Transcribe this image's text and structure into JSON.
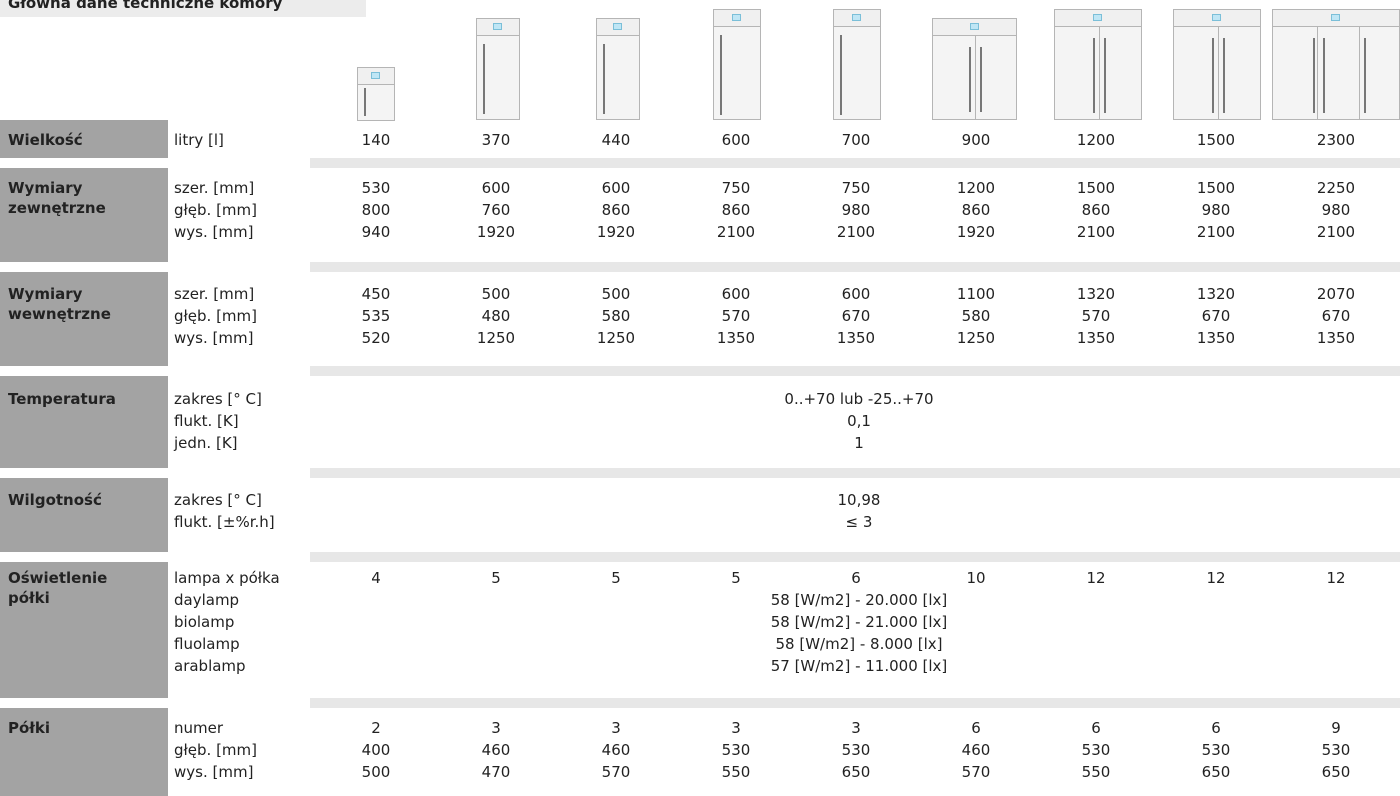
{
  "title": "Główna dane techniczne komory",
  "columns": [
    {
      "liters": "140",
      "ext": [
        "530",
        "800",
        "940"
      ],
      "int": [
        "450",
        "535",
        "520"
      ],
      "lamps": "4",
      "shelves": [
        "2",
        "400",
        "500"
      ]
    },
    {
      "liters": "370",
      "ext": [
        "600",
        "760",
        "1920"
      ],
      "int": [
        "500",
        "480",
        "1250"
      ],
      "lamps": "5",
      "shelves": [
        "3",
        "460",
        "470"
      ]
    },
    {
      "liters": "440",
      "ext": [
        "600",
        "860",
        "1920"
      ],
      "int": [
        "500",
        "580",
        "1250"
      ],
      "lamps": "5",
      "shelves": [
        "3",
        "460",
        "570"
      ]
    },
    {
      "liters": "600",
      "ext": [
        "750",
        "860",
        "2100"
      ],
      "int": [
        "600",
        "570",
        "1350"
      ],
      "lamps": "5",
      "shelves": [
        "3",
        "530",
        "550"
      ]
    },
    {
      "liters": "700",
      "ext": [
        "750",
        "980",
        "2100"
      ],
      "int": [
        "600",
        "670",
        "1350"
      ],
      "lamps": "6",
      "shelves": [
        "3",
        "530",
        "650"
      ]
    },
    {
      "liters": "900",
      "ext": [
        "1200",
        "860",
        "1920"
      ],
      "int": [
        "1100",
        "580",
        "1250"
      ],
      "lamps": "10",
      "shelves": [
        "6",
        "460",
        "570"
      ]
    },
    {
      "liters": "1200",
      "ext": [
        "1500",
        "860",
        "2100"
      ],
      "int": [
        "1320",
        "570",
        "1350"
      ],
      "lamps": "12",
      "shelves": [
        "6",
        "530",
        "550"
      ]
    },
    {
      "liters": "1500",
      "ext": [
        "1500",
        "980",
        "2100"
      ],
      "int": [
        "1320",
        "670",
        "1350"
      ],
      "lamps": "12",
      "shelves": [
        "6",
        "530",
        "650"
      ]
    },
    {
      "liters": "2300",
      "ext": [
        "2250",
        "980",
        "2100"
      ],
      "int": [
        "2070",
        "670",
        "1350"
      ],
      "lamps": "12",
      "shelves": [
        "9",
        "530",
        "650"
      ]
    }
  ],
  "rows": {
    "size": {
      "label": "Wielkość",
      "sub": [
        "litry [l]"
      ]
    },
    "ext": {
      "label": [
        "Wymiary",
        "zewnętrzne"
      ],
      "sub": [
        "szer. [mm]",
        "głęb. [mm]",
        "wys. [mm]"
      ]
    },
    "int": {
      "label": [
        "Wymiary",
        "wewnętrzne"
      ],
      "sub": [
        "szer. [mm]",
        "głęb. [mm]",
        "wys. [mm]"
      ]
    },
    "temp": {
      "label": "Temperatura",
      "sub": [
        "zakres [° C]",
        "flukt. [K]",
        "jedn. [K]"
      ],
      "values": [
        "0..+70 lub -25..+70",
        "0,1",
        "1"
      ]
    },
    "hum": {
      "label": "Wilgotność",
      "sub": [
        "zakres [° C]",
        "flukt. [±%r.h]"
      ],
      "values": [
        "10,98",
        "≤ 3"
      ]
    },
    "light": {
      "label": [
        "Oświetlenie",
        "półki"
      ],
      "sub": [
        "lampa x półka",
        "daylamp",
        "biolamp",
        "fluolamp",
        "arablamp"
      ],
      "values": [
        "58 [W/m2] - 20.000 [lx]",
        "58 [W/m2] - 21.000 [lx]",
        "58 [W/m2] - 8.000 [lx]",
        "57 [W/m2] - 11.000 [lx]"
      ]
    },
    "shelves": {
      "label": "Półki",
      "sub": [
        "numer",
        "głęb. [mm]",
        "wys. [mm]"
      ]
    }
  }
}
